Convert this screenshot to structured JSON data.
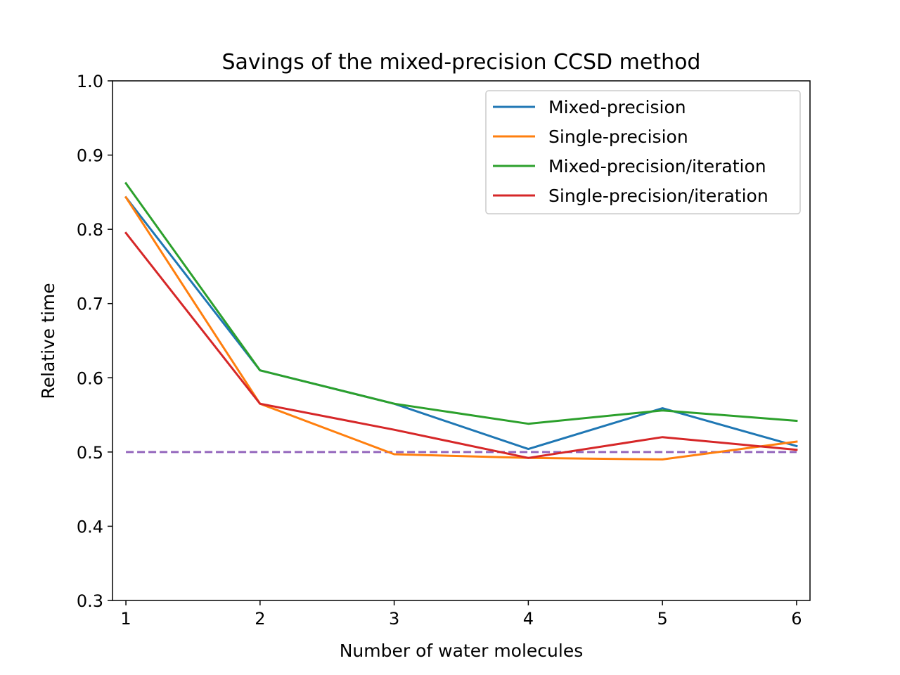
{
  "chart_data": {
    "type": "line",
    "title": "Savings of the mixed-precision CCSD method",
    "xlabel": "Number of water molecules",
    "ylabel": "Relative time",
    "x": [
      1,
      2,
      3,
      4,
      5,
      6
    ],
    "xlim": [
      0.9,
      6.1
    ],
    "ylim": [
      0.3,
      1.0
    ],
    "xticks": [
      "1",
      "2",
      "3",
      "4",
      "5",
      "6"
    ],
    "yticks": [
      "0.3",
      "0.4",
      "0.5",
      "0.6",
      "0.7",
      "0.8",
      "0.9",
      "1.0"
    ],
    "grid": false,
    "legend_position": "top-right",
    "series": [
      {
        "name": "Mixed-precision",
        "color": "#1f77b4",
        "values": [
          0.843,
          0.61,
          0.565,
          0.504,
          0.559,
          0.508
        ]
      },
      {
        "name": "Single-precision",
        "color": "#ff7f0e",
        "values": [
          0.843,
          0.565,
          0.497,
          0.492,
          0.49,
          0.514
        ]
      },
      {
        "name": "Mixed-precision/iteration",
        "color": "#2ca02c",
        "values": [
          0.862,
          0.61,
          0.565,
          0.538,
          0.556,
          0.542
        ]
      },
      {
        "name": "Single-precision/iteration",
        "color": "#d62728",
        "values": [
          0.795,
          0.565,
          0.53,
          0.492,
          0.52,
          0.503
        ]
      }
    ],
    "reference_line": {
      "value": 0.5,
      "color": "#9467bd",
      "style": "dashed"
    }
  }
}
